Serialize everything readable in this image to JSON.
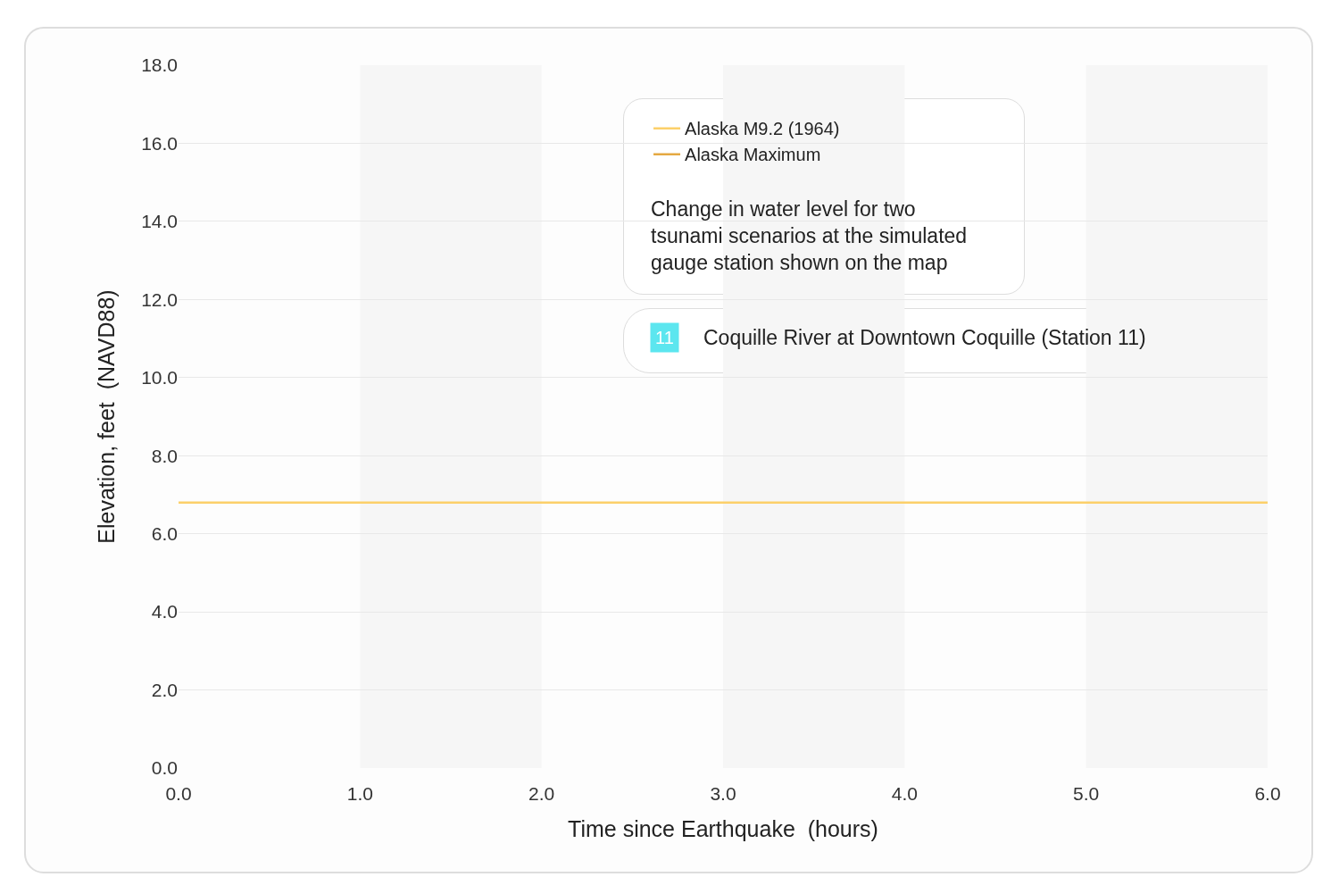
{
  "chart_data": {
    "type": "line",
    "xlabel": "Time since Earthquake  (hours)",
    "ylabel": "Elevation, feet  (NAVD88)",
    "x": [
      0,
      6
    ],
    "series": [
      {
        "name": "Alaska M9.2 (1964)",
        "color": "#fcd06a",
        "values": [
          6.8,
          6.8
        ]
      },
      {
        "name": "Alaska Maximum",
        "color": "#e5a942",
        "values": [
          null,
          null
        ]
      }
    ],
    "xlim": [
      0,
      6
    ],
    "xticks": [
      {
        "value": 0,
        "label": "0.0"
      },
      {
        "value": 1,
        "label": "1.0"
      },
      {
        "value": 2,
        "label": "2.0"
      },
      {
        "value": 3,
        "label": "3.0"
      },
      {
        "value": 4,
        "label": "4.0"
      },
      {
        "value": 5,
        "label": "5.0"
      },
      {
        "value": 6,
        "label": "6.0"
      }
    ],
    "ylim": [
      0,
      18
    ],
    "yticks": [
      {
        "value": 0,
        "label": "0.0"
      },
      {
        "value": 2,
        "label": "2.0"
      },
      {
        "value": 4,
        "label": "4.0"
      },
      {
        "value": 6,
        "label": "6.0"
      },
      {
        "value": 8,
        "label": "8.0"
      },
      {
        "value": 10,
        "label": "10.0"
      },
      {
        "value": 12,
        "label": "12.0"
      },
      {
        "value": 14,
        "label": "14.0"
      },
      {
        "value": 16,
        "label": "16.0"
      },
      {
        "value": 18,
        "label": "18.0"
      }
    ],
    "bands": [
      {
        "axis": "x",
        "from": 1,
        "to": 2,
        "color": "#f6f6f6"
      },
      {
        "axis": "x",
        "from": 3,
        "to": 4,
        "color": "#f6f6f6"
      },
      {
        "axis": "x",
        "from": 5,
        "to": 6,
        "color": "#f6f6f6"
      }
    ],
    "annotations": [
      "Change in water level for two\ntsunami scenarios at the simulated\ngauge station shown on the map",
      "11",
      "Coquille River at Downtown Coquille (Station 11)"
    ],
    "grid": "y",
    "legend": "top",
    "marker": "none",
    "line_style": "solid"
  }
}
